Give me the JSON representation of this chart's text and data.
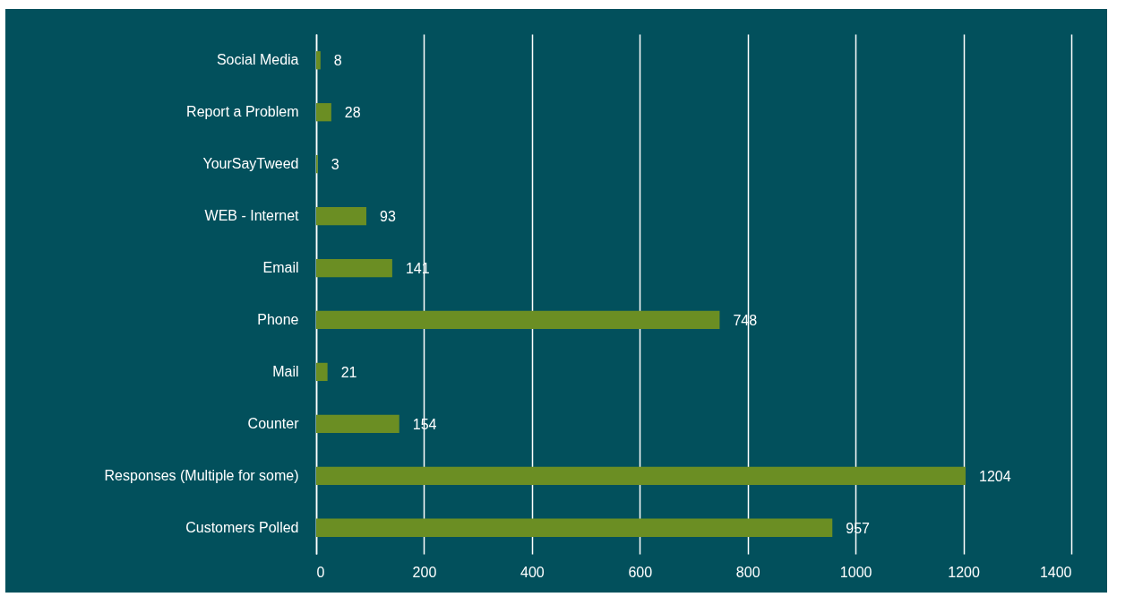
{
  "chart_data": {
    "type": "bar",
    "orientation": "horizontal",
    "categories": [
      "Social Media",
      "Report a Problem",
      "YourSayTweed",
      "WEB - Internet ",
      "Email",
      "Phone",
      "Mail",
      "Counter",
      "Responses (Multiple for some)",
      "Customers Polled"
    ],
    "values": [
      8,
      28,
      3,
      93,
      141,
      748,
      21,
      154,
      1204,
      957
    ],
    "color": "#6b8e23",
    "xlim": [
      0,
      1400
    ],
    "xticks": [
      0,
      200,
      400,
      600,
      800,
      1000,
      1200,
      1400
    ],
    "grid": "x",
    "data_labels": true
  }
}
